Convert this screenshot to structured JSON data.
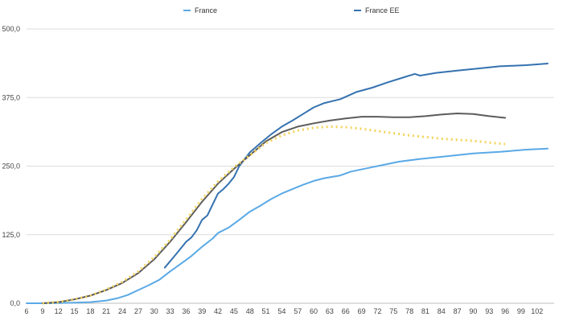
{
  "chart_data": {
    "type": "line",
    "title": "",
    "xlabel": "",
    "ylabel": "",
    "ylim": [
      0,
      500
    ],
    "xlim": [
      6,
      104
    ],
    "grid": true,
    "legend_position": "top-center",
    "y_ticks": [
      "0,0",
      "125,0",
      "250,0",
      "375,0",
      "500,0"
    ],
    "y_tick_values": [
      0,
      125,
      250,
      375,
      500
    ],
    "x_ticks": [
      "6",
      "9",
      "12",
      "15",
      "18",
      "21",
      "24",
      "27",
      "30",
      "33",
      "36",
      "39",
      "42",
      "45",
      "48",
      "51",
      "54",
      "57",
      "60",
      "63",
      "66",
      "69",
      "72",
      "75",
      "78",
      "81",
      "84",
      "87",
      "90",
      "93",
      "96",
      "99",
      "102"
    ],
    "legend": [
      {
        "label": "France",
        "color": "#5aa9e6"
      },
      {
        "label": "France EE",
        "color": "#3572b0"
      }
    ],
    "series": [
      {
        "name": "France",
        "color": "#5aa9e6",
        "style": "solid",
        "points": [
          [
            6,
            0
          ],
          [
            10,
            0
          ],
          [
            12,
            0.5
          ],
          [
            15,
            1
          ],
          [
            18,
            2
          ],
          [
            21,
            5
          ],
          [
            23,
            9
          ],
          [
            25,
            15
          ],
          [
            27,
            24
          ],
          [
            29,
            33
          ],
          [
            31,
            43
          ],
          [
            33,
            58
          ],
          [
            35,
            72
          ],
          [
            37,
            86
          ],
          [
            39,
            103
          ],
          [
            41,
            118
          ],
          [
            42,
            128
          ],
          [
            44,
            138
          ],
          [
            46,
            152
          ],
          [
            48,
            167
          ],
          [
            50,
            178
          ],
          [
            52,
            190
          ],
          [
            54,
            200
          ],
          [
            56,
            208
          ],
          [
            58,
            216
          ],
          [
            60,
            223
          ],
          [
            62,
            228
          ],
          [
            65,
            233
          ],
          [
            67,
            240
          ],
          [
            70,
            246
          ],
          [
            73,
            252
          ],
          [
            76,
            258
          ],
          [
            80,
            263
          ],
          [
            85,
            268
          ],
          [
            90,
            273
          ],
          [
            95,
            276
          ],
          [
            100,
            280
          ],
          [
            104,
            282
          ]
        ]
      },
      {
        "name": "France EE",
        "color": "#3572b0",
        "style": "solid",
        "points": [
          [
            32,
            65
          ],
          [
            34,
            88
          ],
          [
            36,
            112
          ],
          [
            37,
            120
          ],
          [
            38,
            133
          ],
          [
            39,
            152
          ],
          [
            40,
            160
          ],
          [
            41,
            180
          ],
          [
            42,
            200
          ],
          [
            43,
            208
          ],
          [
            44,
            218
          ],
          [
            45,
            230
          ],
          [
            46,
            250
          ],
          [
            48,
            275
          ],
          [
            50,
            292
          ],
          [
            52,
            308
          ],
          [
            54,
            322
          ],
          [
            56,
            333
          ],
          [
            58,
            345
          ],
          [
            60,
            357
          ],
          [
            62,
            365
          ],
          [
            65,
            372
          ],
          [
            68,
            385
          ],
          [
            71,
            393
          ],
          [
            74,
            403
          ],
          [
            77,
            412
          ],
          [
            79,
            418
          ],
          [
            80,
            415
          ],
          [
            83,
            420
          ],
          [
            87,
            424
          ],
          [
            91,
            428
          ],
          [
            95,
            432
          ],
          [
            100,
            434
          ],
          [
            104,
            437
          ]
        ]
      },
      {
        "color": "#5c5c5c",
        "style": "solid",
        "points": [
          [
            9,
            0
          ],
          [
            12,
            2
          ],
          [
            15,
            7
          ],
          [
            18,
            14
          ],
          [
            21,
            24
          ],
          [
            24,
            37
          ],
          [
            27,
            55
          ],
          [
            30,
            80
          ],
          [
            33,
            112
          ],
          [
            36,
            148
          ],
          [
            39,
            185
          ],
          [
            42,
            218
          ],
          [
            45,
            245
          ],
          [
            48,
            270
          ],
          [
            51,
            295
          ],
          [
            54,
            312
          ],
          [
            57,
            322
          ],
          [
            60,
            328
          ],
          [
            63,
            333
          ],
          [
            66,
            337
          ],
          [
            69,
            340
          ],
          [
            72,
            340
          ],
          [
            75,
            339
          ],
          [
            78,
            339
          ],
          [
            81,
            341
          ],
          [
            84,
            344
          ],
          [
            87,
            346
          ],
          [
            90,
            345
          ],
          [
            93,
            341
          ],
          [
            96,
            338
          ]
        ]
      },
      {
        "color": "#f3d35a",
        "style": "dotted",
        "points": [
          [
            9,
            0
          ],
          [
            12,
            2
          ],
          [
            15,
            7
          ],
          [
            18,
            14
          ],
          [
            21,
            25
          ],
          [
            24,
            39
          ],
          [
            27,
            58
          ],
          [
            30,
            84
          ],
          [
            33,
            116
          ],
          [
            36,
            153
          ],
          [
            39,
            190
          ],
          [
            42,
            222
          ],
          [
            45,
            248
          ],
          [
            48,
            270
          ],
          [
            51,
            292
          ],
          [
            54,
            306
          ],
          [
            57,
            315
          ],
          [
            60,
            320
          ],
          [
            63,
            322
          ],
          [
            66,
            321
          ],
          [
            69,
            318
          ],
          [
            72,
            314
          ],
          [
            75,
            310
          ],
          [
            78,
            306
          ],
          [
            81,
            303
          ],
          [
            84,
            300
          ],
          [
            87,
            298
          ],
          [
            90,
            296
          ],
          [
            93,
            293
          ],
          [
            96,
            290
          ]
        ]
      }
    ]
  }
}
